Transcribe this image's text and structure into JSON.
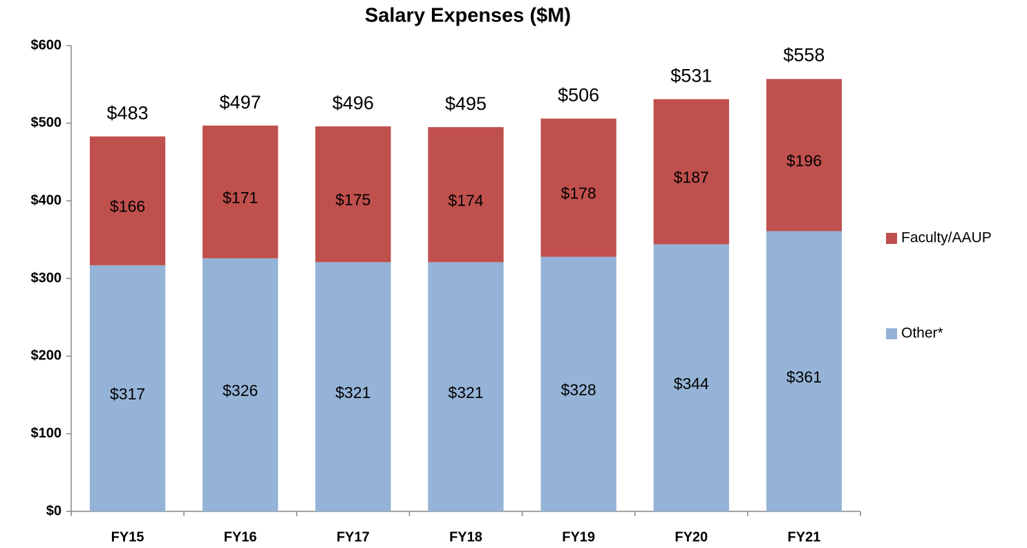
{
  "chart_data": {
    "type": "stacked_bar",
    "title": "Salary Expenses ($M)",
    "categories": [
      "FY15",
      "FY16",
      "FY17",
      "FY18",
      "FY19",
      "FY20",
      "FY21"
    ],
    "series": [
      {
        "name": "Other*",
        "color": "#95b3d7",
        "values": [
          317,
          326,
          321,
          321,
          328,
          344,
          361
        ],
        "value_labels": [
          "$317",
          "$326",
          "$321",
          "$321",
          "$328",
          "$344",
          "$361"
        ]
      },
      {
        "name": "Faculty/AAUP",
        "color": "#c0504d",
        "values": [
          166,
          171,
          175,
          174,
          178,
          187,
          196
        ],
        "value_labels": [
          "$166",
          "$171",
          "$175",
          "$174",
          "$178",
          "$187",
          "$196"
        ]
      }
    ],
    "totals": [
      483,
      497,
      496,
      495,
      506,
      531,
      558
    ],
    "total_labels": [
      "$483",
      "$497",
      "$496",
      "$495",
      "$506",
      "$531",
      "$558"
    ],
    "ylim": [
      0,
      600
    ],
    "yticks": [
      {
        "value": 0,
        "label": "$0"
      },
      {
        "value": 100,
        "label": "$100"
      },
      {
        "value": 200,
        "label": "$200"
      },
      {
        "value": 300,
        "label": "$300"
      },
      {
        "value": 400,
        "label": "$400"
      },
      {
        "value": 500,
        "label": "$500"
      },
      {
        "value": 600,
        "label": "$600"
      }
    ],
    "legend": "right"
  }
}
